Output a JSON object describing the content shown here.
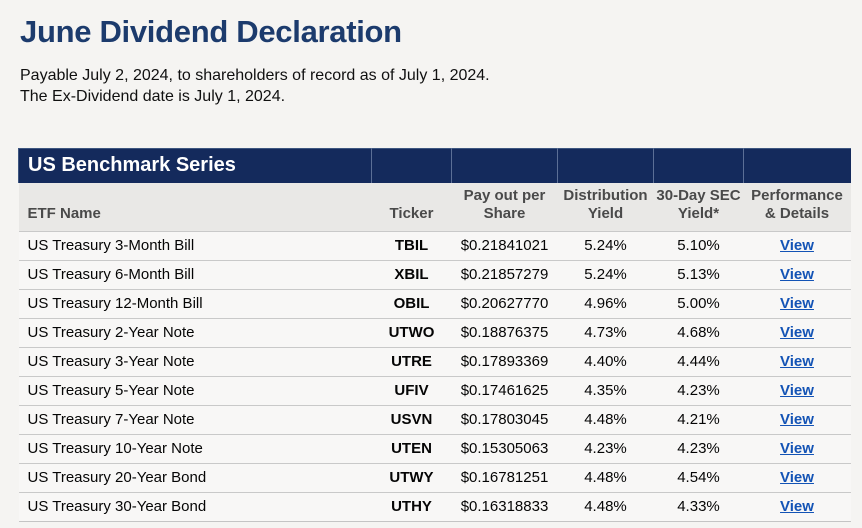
{
  "page": {
    "title": "June Dividend Declaration",
    "subtitle_line1": "Payable July 2, 2024, to shareholders of record as of July 1, 2024.",
    "subtitle_line2": "The Ex-Dividend date is July 1, 2024."
  },
  "table": {
    "section_title": "US Benchmark Series",
    "columns": [
      "ETF Name",
      "Ticker",
      "Pay out per Share",
      "Distribution Yield",
      "30-Day SEC Yield*",
      "Performance & Details"
    ],
    "view_label": "View",
    "rows": [
      {
        "name": "US Treasury 3-Month Bill",
        "ticker": "TBIL",
        "payout": "$0.21841021",
        "dist_yield": "5.24%",
        "sec_yield": "5.10%"
      },
      {
        "name": "US Treasury 6-Month Bill",
        "ticker": "XBIL",
        "payout": "$0.21857279",
        "dist_yield": "5.24%",
        "sec_yield": "5.13%"
      },
      {
        "name": "US Treasury 12-Month Bill",
        "ticker": "OBIL",
        "payout": "$0.20627770",
        "dist_yield": "4.96%",
        "sec_yield": "5.00%"
      },
      {
        "name": "US Treasury 2-Year Note",
        "ticker": "UTWO",
        "payout": "$0.18876375",
        "dist_yield": "4.73%",
        "sec_yield": "4.68%"
      },
      {
        "name": "US Treasury 3-Year Note",
        "ticker": "UTRE",
        "payout": "$0.17893369",
        "dist_yield": "4.40%",
        "sec_yield": "4.44%"
      },
      {
        "name": "US Treasury 5-Year Note",
        "ticker": "UFIV",
        "payout": "$0.17461625",
        "dist_yield": "4.35%",
        "sec_yield": "4.23%"
      },
      {
        "name": "US Treasury 7-Year Note",
        "ticker": "USVN",
        "payout": "$0.17803045",
        "dist_yield": "4.48%",
        "sec_yield": "4.21%"
      },
      {
        "name": "US Treasury 10-Year Note",
        "ticker": "UTEN",
        "payout": "$0.15305063",
        "dist_yield": "4.23%",
        "sec_yield": "4.23%"
      },
      {
        "name": "US Treasury 20-Year Bond",
        "ticker": "UTWY",
        "payout": "$0.16781251",
        "dist_yield": "4.48%",
        "sec_yield": "4.54%"
      },
      {
        "name": "US Treasury 30-Year Bond",
        "ticker": "UTHY",
        "payout": "$0.16318833",
        "dist_yield": "4.48%",
        "sec_yield": "4.33%"
      }
    ]
  },
  "colors": {
    "title_navy": "#1c3b6d",
    "section_bar_navy": "#142a5c",
    "link_blue": "#1353b5",
    "header_gray": "#e9e8e6",
    "page_background": "#f5f4f2"
  }
}
